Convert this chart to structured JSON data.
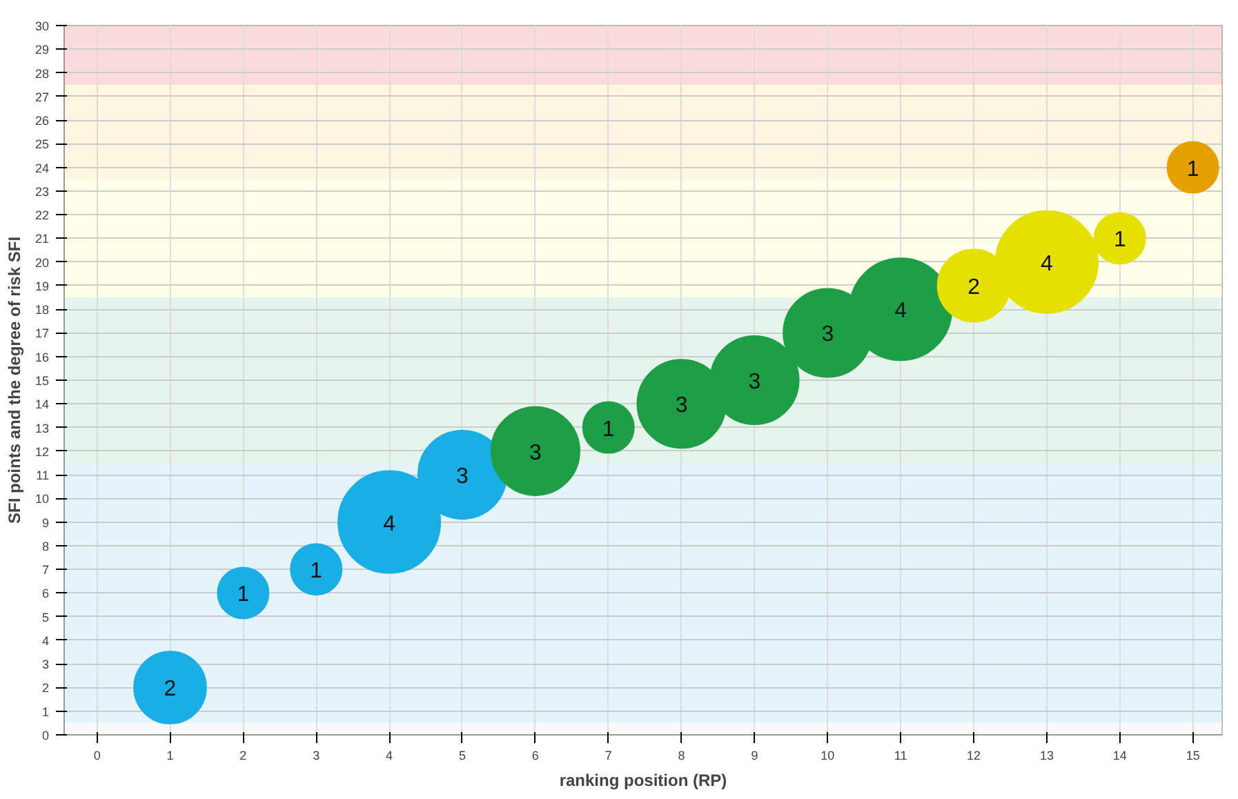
{
  "chart_data": {
    "type": "bubble",
    "xlabel": "ranking position (RP)",
    "ylabel": "SFI points and the degree of risk SFI",
    "x": [
      1,
      2,
      3,
      4,
      5,
      6,
      7,
      8,
      9,
      10,
      11,
      12,
      13,
      14,
      15
    ],
    "values": [
      2,
      6,
      7,
      9,
      11,
      12,
      13,
      14,
      15,
      17,
      18,
      19,
      20,
      21,
      24
    ],
    "sizes": [
      2,
      1,
      1,
      4,
      3,
      3,
      1,
      3,
      3,
      3,
      4,
      2,
      4,
      1,
      1
    ],
    "value_labels": [
      "2",
      "1",
      "1",
      "4",
      "3",
      "3",
      "1",
      "3",
      "3",
      "3",
      "4",
      "2",
      "4",
      "1",
      "1"
    ],
    "colors": [
      "#1aaee6",
      "#1aaee6",
      "#1aaee6",
      "#1aaee6",
      "#1aaee6",
      "#1f9e48",
      "#1f9e48",
      "#1f9e48",
      "#1f9e48",
      "#1f9e48",
      "#1f9e48",
      "#e6e000",
      "#e6e000",
      "#e6e000",
      "#e6a100"
    ],
    "xlim": [
      -0.45,
      15.4
    ],
    "ylim": [
      0,
      30
    ],
    "xticks": [
      0,
      1,
      2,
      3,
      4,
      5,
      6,
      7,
      8,
      9,
      10,
      11,
      12,
      13,
      14,
      15
    ],
    "yticks": [
      0,
      1,
      2,
      3,
      4,
      5,
      6,
      7,
      8,
      9,
      10,
      11,
      12,
      13,
      14,
      15,
      16,
      17,
      18,
      19,
      20,
      21,
      22,
      23,
      24,
      25,
      26,
      27,
      28,
      29,
      30
    ],
    "bands": [
      {
        "axis": "y",
        "from": 0,
        "to": 0.5,
        "color": "#eeeeee"
      },
      {
        "axis": "y",
        "from": 0.5,
        "to": 11.5,
        "color": "#b3e0f2"
      },
      {
        "axis": "y",
        "from": 11.5,
        "to": 18.5,
        "color": "#b5e3c6"
      },
      {
        "axis": "y",
        "from": 18.5,
        "to": 23.5,
        "color": "#fbfbc0"
      },
      {
        "axis": "y",
        "from": 23.5,
        "to": 27.5,
        "color": "#fde5a8"
      },
      {
        "axis": "y",
        "from": 27.5,
        "to": 30,
        "color": "#f49a9a"
      }
    ],
    "grid": true
  }
}
